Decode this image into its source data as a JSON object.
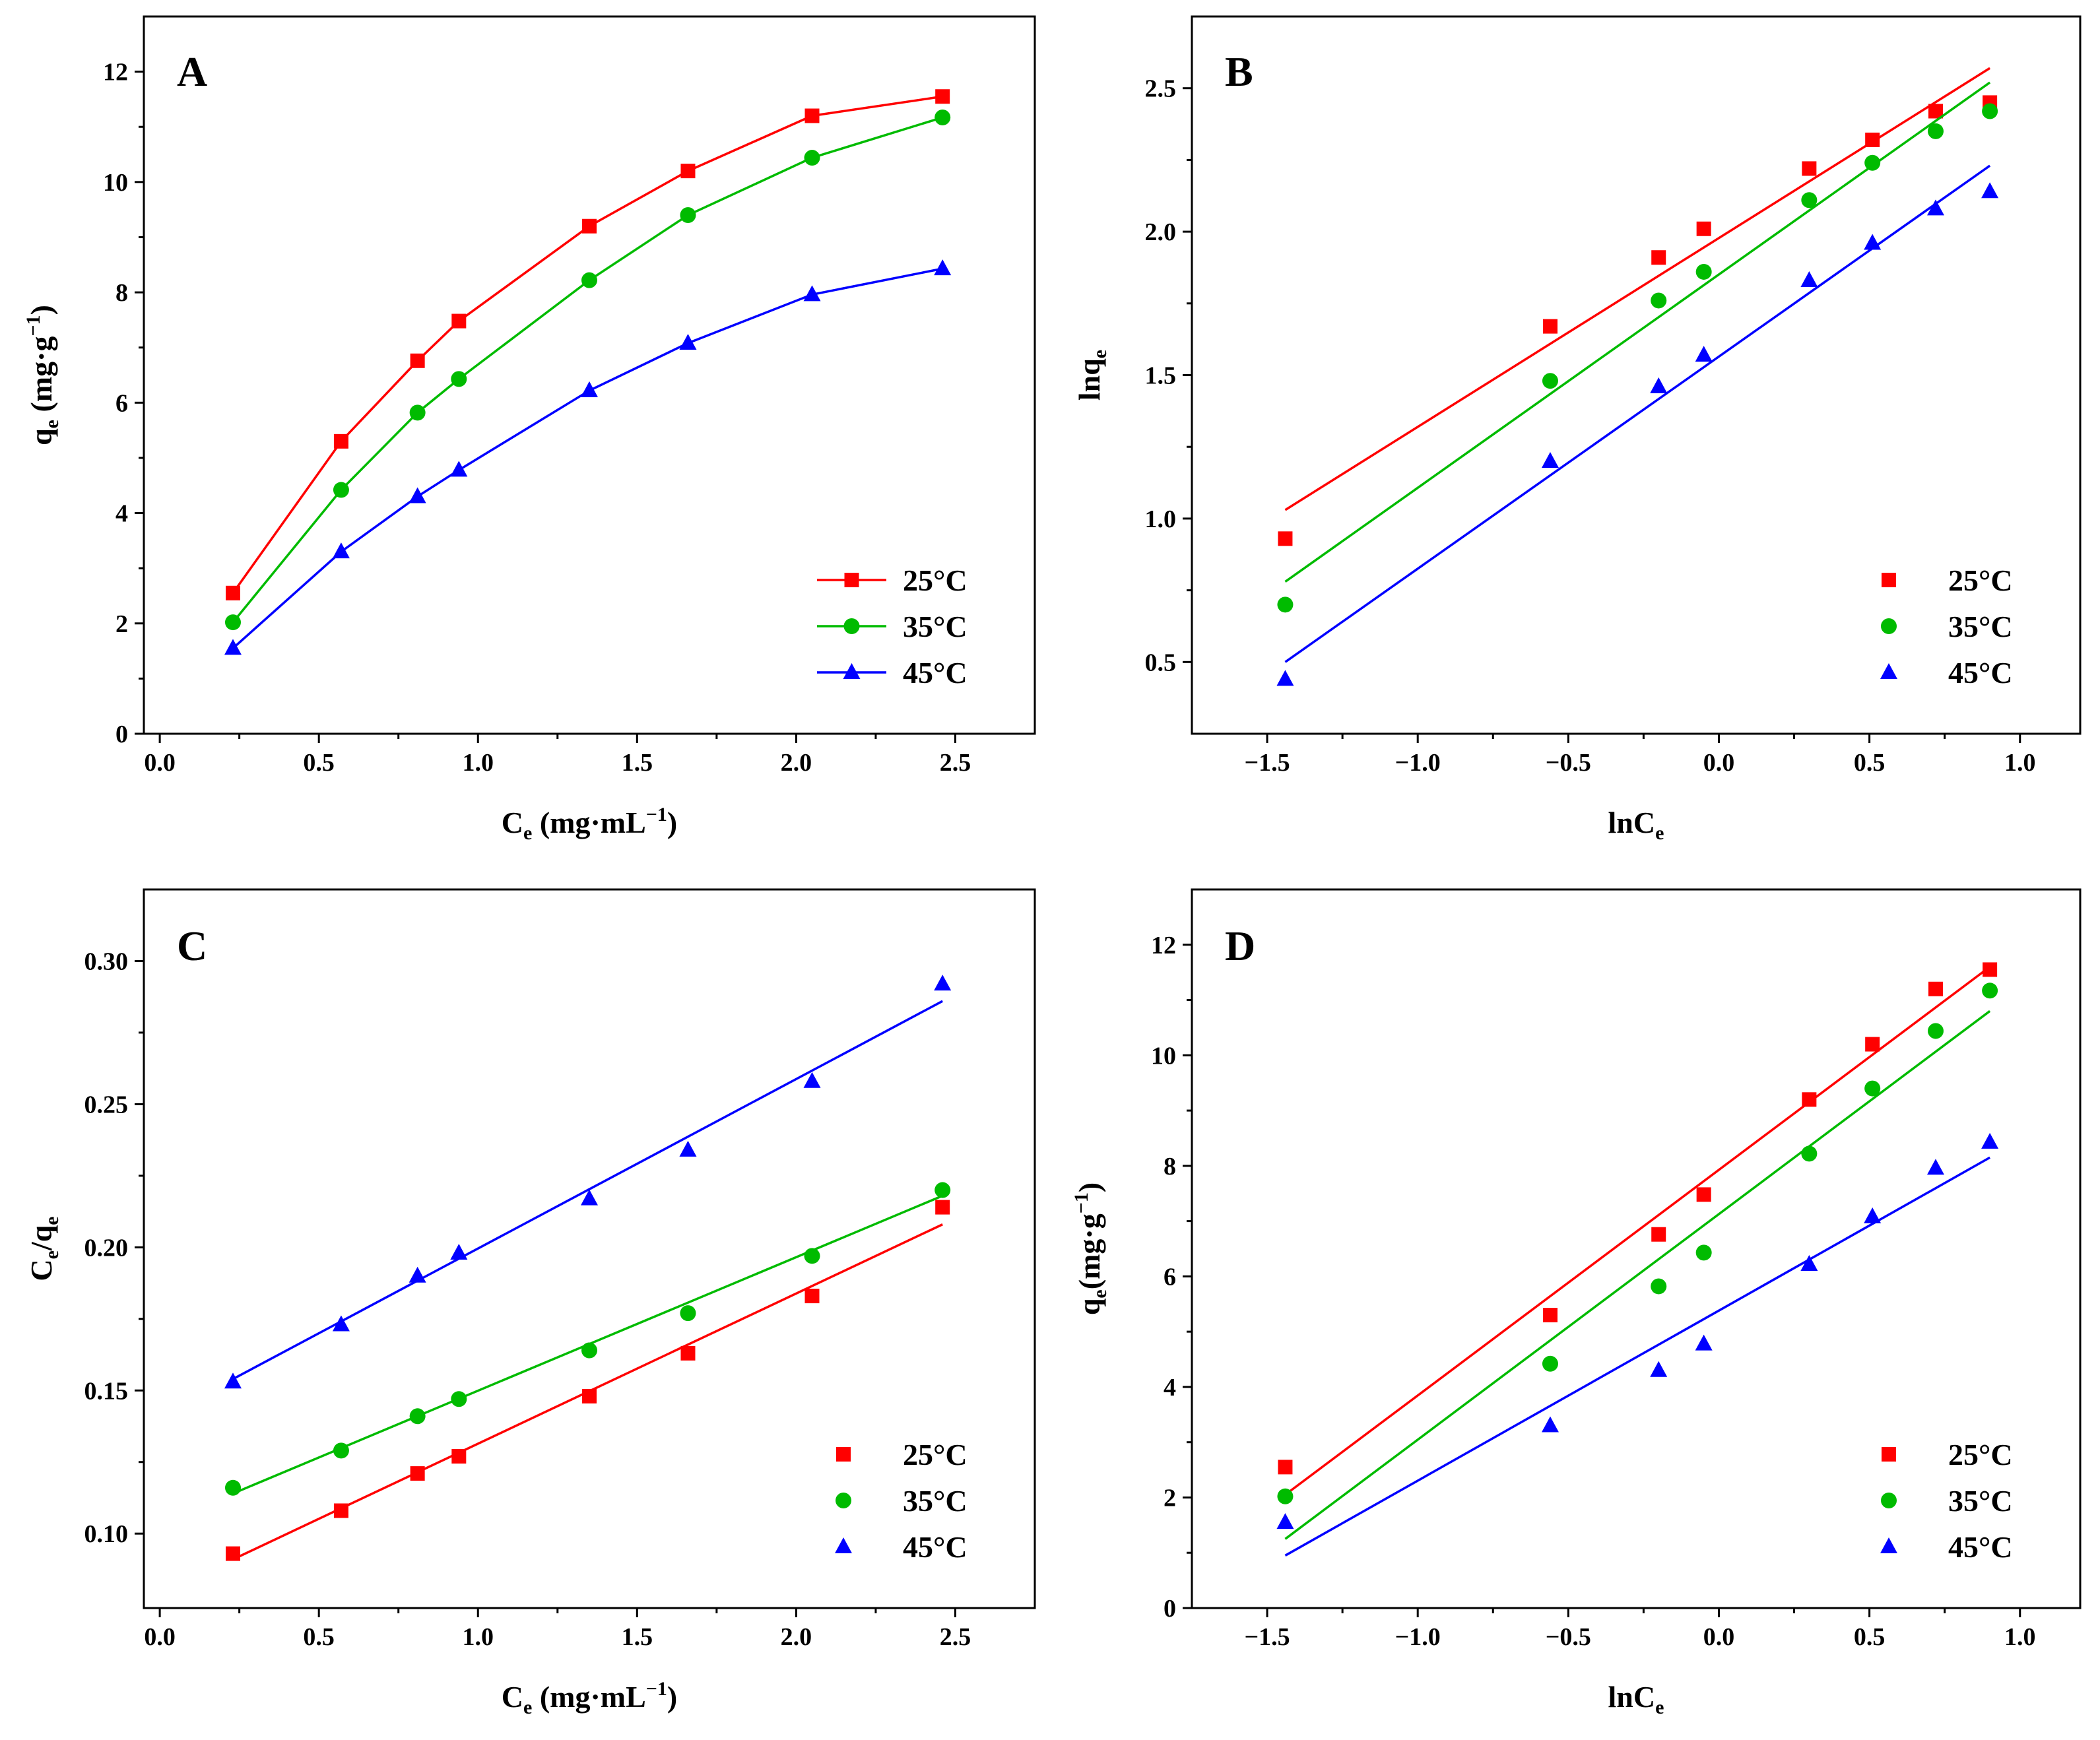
{
  "chart_data": [
    {
      "panel": "A",
      "type": "line",
      "xlabel": "C_e (mg·mL⁻¹)",
      "ylabel": "q_e (mg·g⁻¹)",
      "xlim": [
        -0.05,
        2.75
      ],
      "ylim": [
        0,
        13
      ],
      "xticks": [
        0.0,
        0.5,
        1.0,
        1.5,
        2.0,
        2.5
      ],
      "xtick_labels": [
        "0.0",
        "0.5",
        "1.0",
        "1.5",
        "2.0",
        "2.5"
      ],
      "yticks": [
        0,
        2,
        4,
        6,
        8,
        10,
        12
      ],
      "ytick_labels": [
        "0",
        "2",
        "4",
        "6",
        "8",
        "10",
        "12"
      ],
      "legend_position": "lower-right",
      "legend_style": "line-marker",
      "x": [
        0.23,
        0.57,
        0.81,
        0.94,
        1.35,
        1.66,
        2.05,
        2.46
      ],
      "series": [
        {
          "name": "25°C",
          "color": "#ff0000",
          "marker": "square",
          "values": [
            2.55,
            5.3,
            6.76,
            7.48,
            9.2,
            10.2,
            11.2,
            11.55
          ]
        },
        {
          "name": "35°C",
          "color": "#00bb00",
          "marker": "circle",
          "values": [
            2.02,
            4.42,
            5.82,
            6.43,
            8.22,
            9.4,
            10.44,
            11.17
          ]
        },
        {
          "name": "45°C",
          "color": "#0000ff",
          "marker": "triangle",
          "values": [
            1.55,
            3.3,
            4.3,
            4.78,
            6.22,
            7.08,
            7.96,
            8.43
          ]
        }
      ]
    },
    {
      "panel": "B",
      "type": "scatter",
      "xlabel": "lnC_e",
      "ylabel": "lnq_e",
      "xlim": [
        -1.75,
        1.2
      ],
      "ylim": [
        0.25,
        2.75
      ],
      "xticks": [
        -1.5,
        -1.0,
        -0.5,
        0.0,
        0.5,
        1.0
      ],
      "xtick_labels": [
        "−1.5",
        "−1.0",
        "−0.5",
        "0.0",
        "0.5",
        "1.0"
      ],
      "yticks": [
        0.5,
        1.0,
        1.5,
        2.0,
        2.5
      ],
      "ytick_labels": [
        "0.5",
        "1.0",
        "1.5",
        "2.0",
        "2.5"
      ],
      "legend_position": "lower-right",
      "legend_style": "marker",
      "x": [
        -1.44,
        -0.56,
        -0.2,
        -0.05,
        0.3,
        0.51,
        0.72,
        0.9
      ],
      "series": [
        {
          "name": "25°C",
          "color": "#ff0000",
          "marker": "square",
          "values": [
            0.93,
            1.67,
            1.91,
            2.01,
            2.22,
            2.32,
            2.42,
            2.45
          ],
          "fit": [
            1.03,
            2.57
          ]
        },
        {
          "name": "35°C",
          "color": "#00bb00",
          "marker": "circle",
          "values": [
            0.7,
            1.48,
            1.76,
            1.86,
            2.11,
            2.24,
            2.35,
            2.42
          ],
          "fit": [
            0.78,
            2.52
          ]
        },
        {
          "name": "45°C",
          "color": "#0000ff",
          "marker": "triangle",
          "values": [
            0.44,
            1.2,
            1.46,
            1.57,
            1.83,
            1.96,
            2.08,
            2.14
          ],
          "fit": [
            0.5,
            2.23
          ]
        }
      ]
    },
    {
      "panel": "C",
      "type": "scatter",
      "xlabel": "C_e (mg·mL⁻¹)",
      "ylabel": "C_e/q_e",
      "xlim": [
        -0.05,
        2.75
      ],
      "ylim": [
        0.074,
        0.325
      ],
      "xticks": [
        0.0,
        0.5,
        1.0,
        1.5,
        2.0,
        2.5
      ],
      "xtick_labels": [
        "0.0",
        "0.5",
        "1.0",
        "1.5",
        "2.0",
        "2.5"
      ],
      "yticks": [
        0.1,
        0.15,
        0.2,
        0.25,
        0.3
      ],
      "ytick_labels": [
        "0.10",
        "0.15",
        "0.20",
        "0.25",
        "0.30"
      ],
      "legend_position": "lower-right",
      "legend_style": "marker",
      "x": [
        0.23,
        0.57,
        0.81,
        0.94,
        1.35,
        1.66,
        2.05,
        2.46
      ],
      "series": [
        {
          "name": "25°C",
          "color": "#ff0000",
          "marker": "square",
          "values": [
            0.093,
            0.108,
            0.121,
            0.127,
            0.148,
            0.163,
            0.183,
            0.214
          ],
          "fit": [
            0.091,
            0.208
          ]
        },
        {
          "name": "35°C",
          "color": "#00bb00",
          "marker": "circle",
          "values": [
            0.116,
            0.129,
            0.141,
            0.147,
            0.164,
            0.177,
            0.197,
            0.22
          ],
          "fit": [
            0.114,
            0.218
          ]
        },
        {
          "name": "45°C",
          "color": "#0000ff",
          "marker": "triangle",
          "values": [
            0.153,
            0.173,
            0.19,
            0.198,
            0.217,
            0.234,
            0.258,
            0.292
          ],
          "fit": [
            0.154,
            0.286
          ]
        }
      ]
    },
    {
      "panel": "D",
      "type": "scatter",
      "xlabel": "lnC_e",
      "ylabel": "q_e(mg·g⁻¹)",
      "xlim": [
        -1.75,
        1.2
      ],
      "ylim": [
        0,
        13
      ],
      "xticks": [
        -1.5,
        -1.0,
        -0.5,
        0.0,
        0.5,
        1.0
      ],
      "xtick_labels": [
        "−1.5",
        "−1.0",
        "−0.5",
        "0.0",
        "0.5",
        "1.0"
      ],
      "yticks": [
        0,
        2,
        4,
        6,
        8,
        10,
        12
      ],
      "ytick_labels": [
        "0",
        "2",
        "4",
        "6",
        "8",
        "10",
        "12"
      ],
      "legend_position": "lower-right",
      "legend_style": "marker",
      "x": [
        -1.44,
        -0.56,
        -0.2,
        -0.05,
        0.3,
        0.51,
        0.72,
        0.9
      ],
      "series": [
        {
          "name": "25°C",
          "color": "#ff0000",
          "marker": "square",
          "values": [
            2.55,
            5.3,
            6.76,
            7.48,
            9.2,
            10.2,
            11.2,
            11.55
          ],
          "fit": [
            2.05,
            11.6
          ]
        },
        {
          "name": "35°C",
          "color": "#00bb00",
          "marker": "circle",
          "values": [
            2.02,
            4.42,
            5.82,
            6.43,
            8.22,
            9.4,
            10.44,
            11.17
          ],
          "fit": [
            1.25,
            10.8
          ]
        },
        {
          "name": "45°C",
          "color": "#0000ff",
          "marker": "triangle",
          "values": [
            1.55,
            3.3,
            4.3,
            4.78,
            6.22,
            7.08,
            7.96,
            8.43
          ],
          "fit": [
            0.95,
            8.15
          ]
        }
      ]
    }
  ]
}
